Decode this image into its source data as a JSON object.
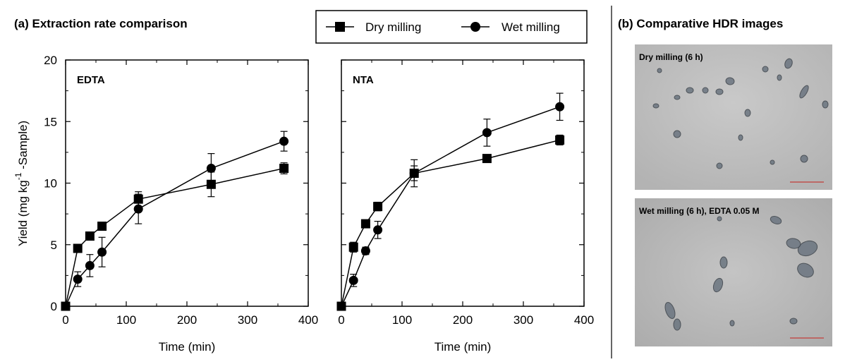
{
  "panel_a_title": "(a) Extraction rate comparison",
  "panel_b_title": "(b) Comparative HDR images",
  "legend": {
    "dry_label": "Dry milling",
    "wet_label": "Wet milling"
  },
  "images": [
    {
      "label": "Dry milling (6 h)"
    },
    {
      "label": "Wet milling (6 h), EDTA 0.05 M"
    }
  ],
  "chart_data": [
    {
      "type": "line",
      "title": "EDTA",
      "xlabel": "Time (min)",
      "ylabel": "Yield (mg kg -1 -Sample)",
      "xlim": [
        0,
        400
      ],
      "ylim": [
        0,
        20
      ],
      "x_ticks": [
        0,
        100,
        200,
        300,
        400
      ],
      "y_ticks": [
        0,
        5,
        10,
        15,
        20
      ],
      "legend_position": "top",
      "series": [
        {
          "name": "Dry milling",
          "marker": "square",
          "x": [
            0,
            20,
            40,
            60,
            120,
            240,
            360
          ],
          "y": [
            0,
            4.7,
            5.7,
            6.5,
            8.7,
            9.9,
            11.2
          ],
          "error": [
            0,
            0.25,
            0.3,
            0.25,
            0.6,
            1.0,
            0.45
          ]
        },
        {
          "name": "Wet milling",
          "marker": "circle",
          "x": [
            0,
            20,
            40,
            60,
            120,
            240,
            360
          ],
          "y": [
            0,
            2.2,
            3.3,
            4.4,
            7.9,
            11.2,
            13.4
          ],
          "error": [
            0,
            0.6,
            0.9,
            1.2,
            1.2,
            1.2,
            0.8
          ]
        }
      ]
    },
    {
      "type": "line",
      "title": "NTA",
      "xlabel": "Time (min)",
      "ylabel": "",
      "xlim": [
        0,
        400
      ],
      "ylim": [
        0,
        20
      ],
      "x_ticks": [
        0,
        100,
        200,
        300,
        400
      ],
      "y_ticks": [
        0,
        5,
        10,
        15,
        20
      ],
      "series": [
        {
          "name": "Dry milling",
          "marker": "square",
          "x": [
            0,
            20,
            40,
            60,
            120,
            240,
            360
          ],
          "y": [
            0,
            4.8,
            6.7,
            8.1,
            10.8,
            12.0,
            13.5
          ],
          "error": [
            0,
            0.4,
            0.3,
            0.35,
            0.6,
            0.25,
            0.4
          ]
        },
        {
          "name": "Wet milling",
          "marker": "circle",
          "x": [
            0,
            20,
            40,
            60,
            120,
            240,
            360
          ],
          "y": [
            0,
            2.1,
            4.5,
            6.2,
            10.8,
            14.1,
            16.2
          ],
          "error": [
            0,
            0.5,
            0.3,
            0.7,
            1.1,
            1.1,
            1.1
          ]
        }
      ]
    }
  ]
}
